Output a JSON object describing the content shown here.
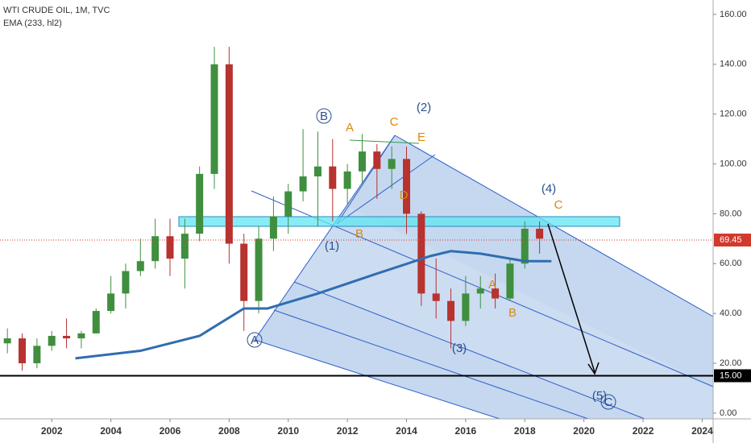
{
  "chart_data": {
    "type": "candlestick",
    "title": "WTI CRUDE OIL, 1M, TVC",
    "up_color": "#3f8f3f",
    "down_color": "#b8322f",
    "candles": {
      "x": [
        2000.5,
        2001.0,
        2001.5,
        2002.0,
        2002.5,
        2003.0,
        2003.5,
        2004.0,
        2004.5,
        2005.0,
        2005.5,
        2006.0,
        2006.5,
        2007.0,
        2007.5,
        2008.0,
        2008.5,
        2009.0,
        2009.5,
        2010.0,
        2010.5,
        2011.0,
        2011.5,
        2012.0,
        2012.5,
        2013.0,
        2013.5,
        2014.0,
        2014.5,
        2015.0,
        2015.5,
        2016.0,
        2016.5,
        2017.0,
        2017.5,
        2018.0,
        2018.5
      ],
      "open": [
        28,
        30,
        20,
        27,
        31,
        30,
        32,
        41,
        48,
        57,
        61,
        71,
        62,
        72,
        96,
        140,
        68,
        45,
        70,
        79,
        89,
        95,
        99,
        90,
        97,
        105,
        98,
        102,
        80,
        48,
        45,
        37,
        48,
        50,
        46,
        60,
        74
      ],
      "high": [
        34,
        32,
        30,
        33,
        38,
        33,
        42,
        55,
        60,
        70,
        78,
        78,
        78,
        99,
        147,
        147,
        72,
        75,
        87,
        92,
        114,
        113,
        110,
        100,
        112,
        108,
        107,
        107,
        81,
        62,
        50,
        55,
        55,
        56,
        62,
        77,
        77
      ],
      "low": [
        24,
        17,
        18,
        25,
        26,
        26,
        32,
        40,
        42,
        55,
        58,
        55,
        50,
        69,
        90,
        60,
        33,
        40,
        65,
        72,
        85,
        75,
        77,
        84,
        92,
        86,
        90,
        72,
        43,
        38,
        26,
        35,
        42,
        42,
        45,
        58,
        64
      ],
      "close": [
        30,
        20,
        27,
        31,
        30,
        32,
        41,
        48,
        57,
        61,
        71,
        62,
        72,
        96,
        140,
        68,
        45,
        70,
        79,
        89,
        95,
        99,
        90,
        97,
        105,
        98,
        102,
        80,
        48,
        45,
        37,
        48,
        50,
        46,
        60,
        74,
        70
      ]
    },
    "series": [
      {
        "name": "EMA (233, hl2)",
        "color": "#2f6db0",
        "x": [
          2002.8,
          2005,
          2007,
          2008.5,
          2009.3,
          2011,
          2013,
          2014.8,
          2015.5,
          2016.5,
          2018,
          2018.9
        ],
        "values": [
          22,
          25,
          31,
          42,
          42,
          48,
          56,
          63,
          65,
          64,
          61,
          61
        ]
      }
    ],
    "price_lines": [
      {
        "value": 69.45,
        "color": "#d0392b"
      },
      {
        "value": 15,
        "label": "15.00",
        "color": "#000000"
      }
    ],
    "xlim": [
      2000.25,
      2024.37
    ],
    "ylim": [
      -2.3,
      165.8
    ],
    "xticks": [
      2002,
      2004,
      2006,
      2008,
      2010,
      2012,
      2014,
      2016,
      2018,
      2020,
      2022,
      2024
    ],
    "yticks": [
      {
        "value": 0,
        "label": "0.00"
      },
      {
        "value": 20,
        "label": "20.00"
      },
      {
        "value": 40,
        "label": "40.00"
      },
      {
        "value": 60,
        "label": "60.00"
      },
      {
        "value": 80,
        "label": "80.00"
      },
      {
        "value": 100,
        "label": "100.00"
      },
      {
        "value": 120,
        "label": "120.00"
      },
      {
        "value": 140,
        "label": "140.00"
      },
      {
        "value": 160,
        "label": "160.00"
      }
    ],
    "annotations": [
      "A",
      "B",
      "(1)",
      "A",
      "B",
      "C",
      "(2)",
      "D",
      "E",
      "(3)",
      "A",
      "B",
      "(4)",
      "C",
      "(5)",
      "C"
    ]
  }
}
